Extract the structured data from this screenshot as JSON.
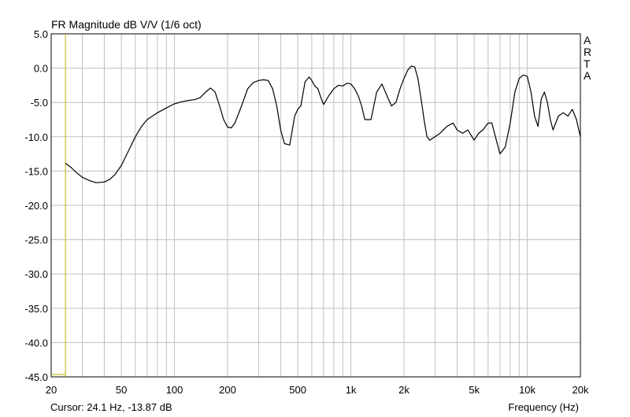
{
  "chart_data": {
    "type": "line",
    "title": "FR Magnitude dB V/V (1/6 oct)",
    "xlabel": "Frequency (Hz)",
    "ylabel": "",
    "x_scale": "log",
    "xlim": [
      20,
      20000
    ],
    "ylim": [
      -45,
      5
    ],
    "grid": true,
    "y_ticks": [
      5,
      0,
      -5,
      -10,
      -15,
      -20,
      -25,
      -30,
      -35,
      -40,
      -45
    ],
    "y_tick_labels": [
      "5.0",
      "0.0",
      "-5.0",
      "-10.0",
      "-15.0",
      "-20.0",
      "-25.0",
      "-30.0",
      "-35.0",
      "-40.0",
      "-45.0"
    ],
    "x_ticks": [
      20,
      50,
      100,
      200,
      500,
      1000,
      2000,
      5000,
      10000,
      20000
    ],
    "x_tick_labels": [
      "20",
      "50",
      "100",
      "200",
      "500",
      "1k",
      "2k",
      "5k",
      "10k",
      "20k"
    ],
    "x_minor_grid": [
      30,
      40,
      60,
      70,
      80,
      90,
      300,
      400,
      600,
      700,
      800,
      900,
      3000,
      4000,
      6000,
      7000,
      8000,
      9000
    ],
    "brand_letters": [
      "A",
      "R",
      "T",
      "A"
    ],
    "cursor_text": "Cursor: 24.1 Hz, -13.87 dB",
    "cursor_x": 24.1,
    "colors": {
      "curve": "#000000",
      "grid": "#c0c0c0",
      "cursor": "#b5b500",
      "axis": "#000000"
    },
    "series": [
      {
        "x": [
          24.1,
          26,
          28,
          30,
          33,
          36,
          40,
          43,
          46,
          50,
          55,
          60,
          65,
          70,
          80,
          90,
          100,
          110,
          120,
          130,
          140,
          150,
          160,
          170,
          180,
          190,
          200,
          210,
          220,
          240,
          260,
          280,
          300,
          320,
          340,
          360,
          380,
          400,
          420,
          450,
          480,
          500,
          520,
          550,
          580,
          600,
          620,
          650,
          680,
          700,
          750,
          800,
          850,
          900,
          950,
          1000,
          1050,
          1100,
          1150,
          1200,
          1300,
          1400,
          1500,
          1600,
          1700,
          1800,
          1900,
          2000,
          2100,
          2200,
          2300,
          2400,
          2500,
          2600,
          2700,
          2800,
          3000,
          3200,
          3500,
          3800,
          4000,
          4300,
          4600,
          5000,
          5300,
          5600,
          6000,
          6300,
          6600,
          7000,
          7500,
          8000,
          8500,
          9000,
          9500,
          10000,
          10500,
          11000,
          11500,
          12000,
          12500,
          13000,
          13500,
          14000,
          15000,
          16000,
          17000,
          18000,
          19000,
          20000
        ],
        "y": [
          -13.87,
          -14.5,
          -15.3,
          -15.9,
          -16.4,
          -16.7,
          -16.6,
          -16.2,
          -15.5,
          -14.2,
          -12.0,
          -10.0,
          -8.5,
          -7.5,
          -6.5,
          -5.8,
          -5.2,
          -4.9,
          -4.7,
          -4.6,
          -4.3,
          -3.5,
          -2.9,
          -3.5,
          -5.5,
          -7.5,
          -8.6,
          -8.7,
          -8.0,
          -5.5,
          -3.0,
          -2.1,
          -1.8,
          -1.7,
          -1.8,
          -3.0,
          -5.5,
          -9.0,
          -11.0,
          -11.2,
          -7.0,
          -6.0,
          -5.5,
          -2.0,
          -1.3,
          -1.8,
          -2.5,
          -3.0,
          -4.5,
          -5.3,
          -4.0,
          -3.0,
          -2.5,
          -2.6,
          -2.2,
          -2.3,
          -3.0,
          -4.0,
          -5.5,
          -7.5,
          -7.5,
          -3.5,
          -2.3,
          -4.0,
          -5.5,
          -5.0,
          -3.0,
          -1.5,
          -0.3,
          0.3,
          0.2,
          -1.5,
          -4.5,
          -7.5,
          -10.0,
          -10.5,
          -10.0,
          -9.5,
          -8.5,
          -8.0,
          -9.0,
          -9.5,
          -9.0,
          -10.5,
          -9.5,
          -9.0,
          -8.0,
          -8.0,
          -10.0,
          -12.5,
          -11.5,
          -8.0,
          -3.5,
          -1.5,
          -1.0,
          -1.2,
          -3.5,
          -7.0,
          -8.5,
          -4.5,
          -3.5,
          -5.0,
          -7.5,
          -9.0,
          -7.0,
          -6.5,
          -7.0,
          -6.0,
          -7.5,
          -10.0
        ]
      }
    ]
  }
}
